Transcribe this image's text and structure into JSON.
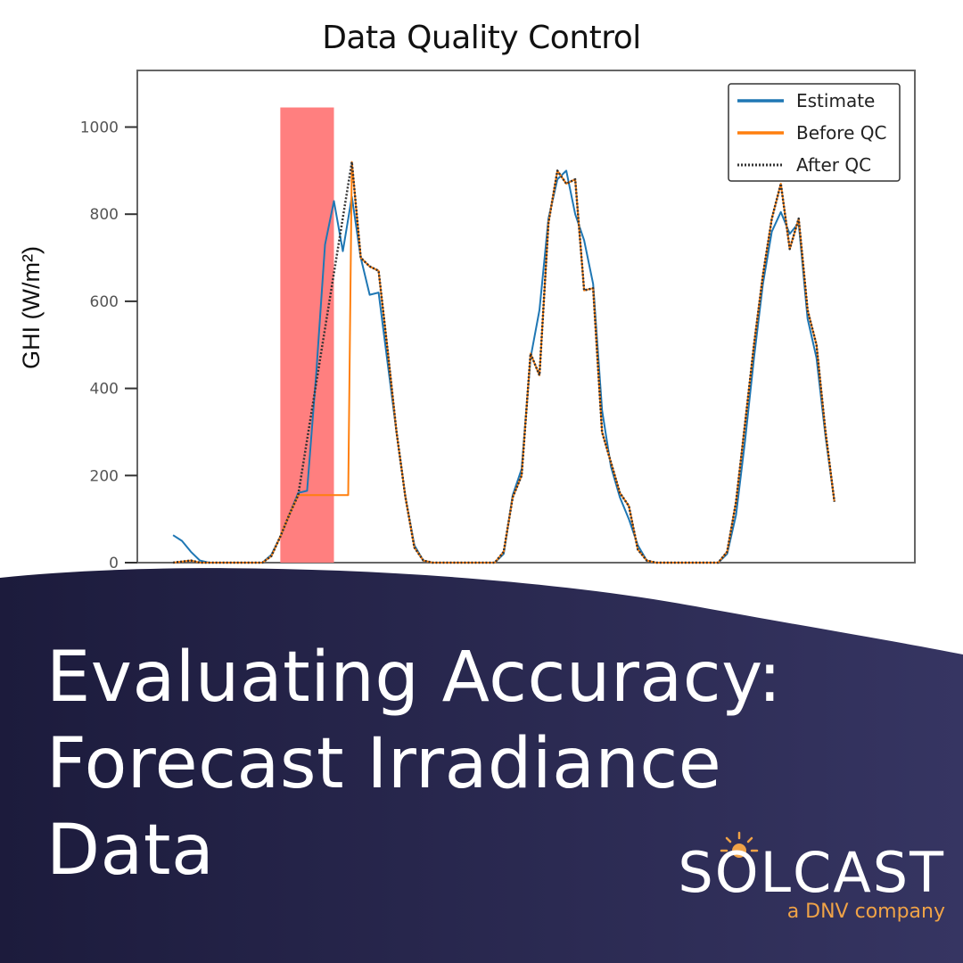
{
  "chart_data": {
    "type": "line",
    "title": "Data Quality Control",
    "xlabel": "",
    "ylabel": "GHI (W/m²)",
    "ylim": [
      0,
      1130
    ],
    "xlim": [
      0,
      87
    ],
    "yticks": [
      0,
      200,
      400,
      600,
      800,
      1000
    ],
    "grid": false,
    "legend_position": "top-right",
    "highlight_region": {
      "x_start": 16,
      "x_end": 22,
      "y_top": 1045,
      "color": "#ff7f7f"
    },
    "series": [
      {
        "name": "Estimate",
        "color": "#1f77b4",
        "style": "solid",
        "points": [
          [
            4,
            63
          ],
          [
            5,
            50
          ],
          [
            6,
            25
          ],
          [
            7,
            5
          ],
          [
            8,
            0
          ],
          [
            14,
            0
          ],
          [
            15,
            18
          ],
          [
            16,
            60
          ],
          [
            17,
            110
          ],
          [
            18,
            160
          ],
          [
            19,
            165
          ],
          [
            20,
            430
          ],
          [
            21,
            730
          ],
          [
            22,
            830
          ],
          [
            23,
            715
          ],
          [
            24,
            840
          ],
          [
            25,
            700
          ],
          [
            26,
            615
          ],
          [
            27,
            620
          ],
          [
            28,
            460
          ],
          [
            29,
            300
          ],
          [
            30,
            150
          ],
          [
            31,
            40
          ],
          [
            32,
            5
          ],
          [
            33,
            0
          ],
          [
            40,
            0
          ],
          [
            41,
            20
          ],
          [
            42,
            155
          ],
          [
            43,
            215
          ],
          [
            44,
            470
          ],
          [
            45,
            580
          ],
          [
            46,
            790
          ],
          [
            47,
            880
          ],
          [
            48,
            900
          ],
          [
            49,
            800
          ],
          [
            50,
            740
          ],
          [
            51,
            640
          ],
          [
            52,
            350
          ],
          [
            53,
            220
          ],
          [
            54,
            150
          ],
          [
            55,
            100
          ],
          [
            56,
            40
          ],
          [
            57,
            5
          ],
          [
            58,
            0
          ],
          [
            65,
            0
          ],
          [
            66,
            20
          ],
          [
            67,
            110
          ],
          [
            68,
            280
          ],
          [
            69,
            470
          ],
          [
            70,
            640
          ],
          [
            71,
            760
          ],
          [
            72,
            805
          ],
          [
            73,
            755
          ],
          [
            74,
            780
          ],
          [
            75,
            560
          ],
          [
            76,
            470
          ],
          [
            77,
            290
          ],
          [
            78,
            140
          ]
        ]
      },
      {
        "name": "Before QC",
        "color": "#ff7f0e",
        "style": "solid",
        "points": [
          [
            4,
            0
          ],
          [
            6,
            5
          ],
          [
            7,
            0
          ],
          [
            14,
            0
          ],
          [
            15,
            15
          ],
          [
            16,
            60
          ],
          [
            17,
            110
          ],
          [
            18,
            155
          ],
          [
            22,
            155
          ],
          [
            23,
            155
          ],
          [
            23.6,
            155
          ],
          [
            24,
            920
          ],
          [
            25,
            700
          ],
          [
            26,
            680
          ],
          [
            27,
            670
          ],
          [
            28,
            490
          ],
          [
            29,
            300
          ],
          [
            30,
            150
          ],
          [
            31,
            35
          ],
          [
            32,
            5
          ],
          [
            33,
            0
          ],
          [
            40,
            0
          ],
          [
            41,
            25
          ],
          [
            42,
            150
          ],
          [
            43,
            200
          ],
          [
            44,
            480
          ],
          [
            45,
            430
          ],
          [
            46,
            780
          ],
          [
            47,
            900
          ],
          [
            48,
            870
          ],
          [
            49,
            880
          ],
          [
            50,
            625
          ],
          [
            51,
            630
          ],
          [
            52,
            300
          ],
          [
            53,
            230
          ],
          [
            54,
            160
          ],
          [
            55,
            130
          ],
          [
            56,
            30
          ],
          [
            57,
            5
          ],
          [
            58,
            0
          ],
          [
            65,
            0
          ],
          [
            66,
            25
          ],
          [
            67,
            140
          ],
          [
            68,
            320
          ],
          [
            69,
            500
          ],
          [
            70,
            660
          ],
          [
            71,
            790
          ],
          [
            72,
            870
          ],
          [
            73,
            720
          ],
          [
            74,
            790
          ],
          [
            75,
            580
          ],
          [
            76,
            500
          ],
          [
            77,
            300
          ],
          [
            78,
            140
          ]
        ]
      },
      {
        "name": "After QC",
        "color": "#333333",
        "style": "dotted",
        "points": [
          [
            4,
            0
          ],
          [
            6,
            5
          ],
          [
            7,
            0
          ],
          [
            14,
            0
          ],
          [
            15,
            15
          ],
          [
            16,
            60
          ],
          [
            17,
            110
          ],
          [
            18,
            155
          ],
          [
            24,
            920
          ],
          [
            25,
            700
          ],
          [
            26,
            680
          ],
          [
            27,
            670
          ],
          [
            28,
            490
          ],
          [
            29,
            300
          ],
          [
            30,
            150
          ],
          [
            31,
            35
          ],
          [
            32,
            5
          ],
          [
            33,
            0
          ],
          [
            40,
            0
          ],
          [
            41,
            25
          ],
          [
            42,
            150
          ],
          [
            43,
            200
          ],
          [
            44,
            480
          ],
          [
            45,
            430
          ],
          [
            46,
            780
          ],
          [
            47,
            900
          ],
          [
            48,
            870
          ],
          [
            49,
            880
          ],
          [
            50,
            625
          ],
          [
            51,
            630
          ],
          [
            52,
            300
          ],
          [
            53,
            230
          ],
          [
            54,
            160
          ],
          [
            55,
            130
          ],
          [
            56,
            30
          ],
          [
            57,
            5
          ],
          [
            58,
            0
          ],
          [
            65,
            0
          ],
          [
            66,
            25
          ],
          [
            67,
            140
          ],
          [
            68,
            320
          ],
          [
            69,
            500
          ],
          [
            70,
            660
          ],
          [
            71,
            790
          ],
          [
            72,
            870
          ],
          [
            73,
            720
          ],
          [
            74,
            790
          ],
          [
            75,
            580
          ],
          [
            76,
            500
          ],
          [
            77,
            300
          ],
          [
            78,
            140
          ]
        ]
      }
    ]
  },
  "headline": {
    "line1": "Evaluating Accuracy:",
    "line2": "Forecast Irradiance",
    "line3": "Data"
  },
  "brand": {
    "name": "SOLCAST",
    "tagline": "a DNV company",
    "colors": {
      "accent": "#f0a347",
      "navy_left": "#1c1b3c",
      "navy_right": "#363562"
    }
  }
}
